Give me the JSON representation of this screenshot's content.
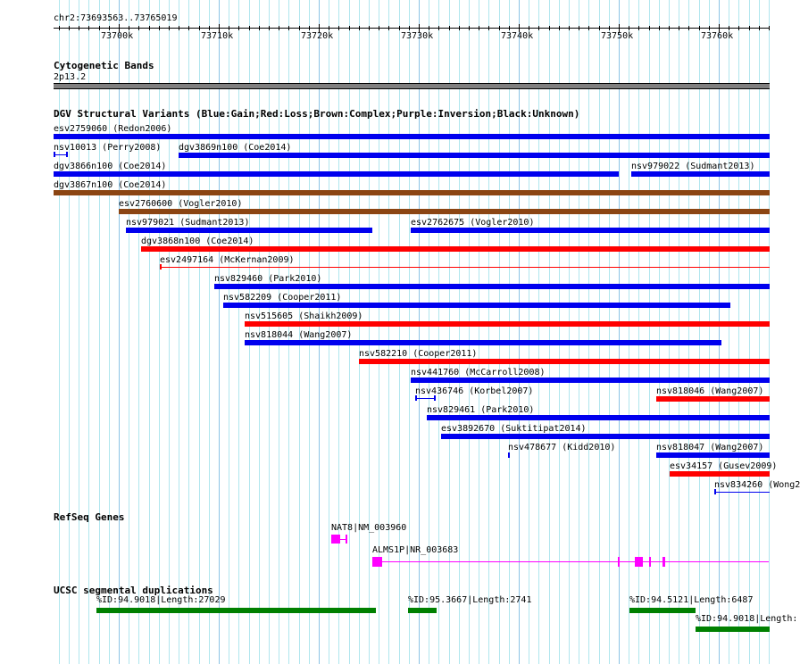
{
  "ruler": {
    "label": "chr2:73693563..73765019",
    "start_kb": 73693.563,
    "end_kb": 73765.019,
    "tick_labels": [
      {
        "kb": 73700,
        "text": "73700k"
      },
      {
        "kb": 73710,
        "text": "73710k"
      },
      {
        "kb": 73720,
        "text": "73720k"
      },
      {
        "kb": 73730,
        "text": "73730k"
      },
      {
        "kb": 73740,
        "text": "73740k"
      },
      {
        "kb": 73750,
        "text": "73750k"
      },
      {
        "kb": 73760,
        "text": "73760k"
      }
    ]
  },
  "cyto": {
    "title": "Cytogenetic Bands",
    "band": "2p13.2",
    "color": "#808080"
  },
  "dgv": {
    "title": "DGV Structural Variants (Blue:Gain;Red:Loss;Brown:Complex;Purple:Inversion;Black:Unknown)",
    "colors": {
      "gain": "#0000ee",
      "loss": "#ff0000",
      "complex": "#8b4513"
    },
    "rows": [
      [
        {
          "label": "esv2759060 (Redon2006)",
          "s": 73693.5,
          "e": 73765.1,
          "type": "gain"
        }
      ],
      [
        {
          "label": "nsv10013 (Perry2008)",
          "s": 73693.5,
          "e": 73694.8,
          "type": "gain",
          "thin": true
        },
        {
          "label": "dgv3869n100 (Coe2014)",
          "s": 73706.0,
          "e": 73765.1,
          "type": "gain"
        }
      ],
      [
        {
          "label": "dgv3866n100 (Coe2014)",
          "s": 73693.5,
          "e": 73750.0,
          "type": "gain"
        },
        {
          "label": "nsv979022 (Sudmant2013)",
          "s": 73751.25,
          "e": 73765.1,
          "type": "gain"
        }
      ],
      [
        {
          "label": "dgv3867n100 (Coe2014)",
          "s": 73693.5,
          "e": 73765.1,
          "type": "complex"
        }
      ],
      [
        {
          "label": "esv2760600 (Vogler2010)",
          "s": 73700.0,
          "e": 73765.1,
          "type": "complex"
        }
      ],
      [
        {
          "label": "nsv979021 (Sudmant2013)",
          "s": 73700.7,
          "e": 73725.4,
          "type": "gain"
        },
        {
          "label": "esv2762675 (Vogler2010)",
          "s": 73729.2,
          "e": 73765.1,
          "type": "gain"
        }
      ],
      [
        {
          "label": "dgv3868n100 (Coe2014)",
          "s": 73702.2,
          "e": 73765.1,
          "type": "loss"
        }
      ],
      [
        {
          "label": "esv2497164 (McKernan2009)",
          "s": 73704.1,
          "e": 73765.1,
          "type": "loss",
          "thin": true
        }
      ],
      [
        {
          "label": "nsv829460 (Park2010)",
          "s": 73709.55,
          "e": 73765.1,
          "type": "gain"
        }
      ],
      [
        {
          "label": "nsv582209 (Cooper2011)",
          "s": 73710.45,
          "e": 73761.2,
          "type": "gain"
        }
      ],
      [
        {
          "label": "nsv515605 (Shaikh2009)",
          "s": 73712.6,
          "e": 73765.1,
          "type": "loss"
        }
      ],
      [
        {
          "label": "nsv818044 (Wang2007)",
          "s": 73712.6,
          "e": 73760.3,
          "type": "gain"
        }
      ],
      [
        {
          "label": "nsv582210 (Cooper2011)",
          "s": 73724.0,
          "e": 73765.1,
          "type": "loss"
        }
      ],
      [
        {
          "label": "nsv441760 (McCarroll2008)",
          "s": 73729.2,
          "e": 73765.1,
          "type": "gain"
        }
      ],
      [
        {
          "label": "nsv436746 (Korbel2007)",
          "s": 73729.6,
          "e": 73731.6,
          "type": "gain",
          "thin": true
        },
        {
          "label": "nsv818046 (Wang2007)",
          "s": 73753.75,
          "e": 73765.1,
          "type": "loss"
        }
      ],
      [
        {
          "label": "nsv829461 (Park2010)",
          "s": 73730.8,
          "e": 73765.1,
          "type": "gain"
        }
      ],
      [
        {
          "label": "esv3892670 (Suktitipat2014)",
          "s": 73732.2,
          "e": 73765.1,
          "type": "gain"
        }
      ],
      [
        {
          "label": "nsv478677 (Kidd2010)",
          "s": 73738.9,
          "e": 73739.1,
          "type": "gain"
        },
        {
          "label": "nsv818047 (Wang2007)",
          "s": 73753.75,
          "e": 73765.1,
          "type": "gain"
        }
      ],
      [
        {
          "label": "esv34157 (Gusev2009)",
          "s": 73755.1,
          "e": 73765.1,
          "type": "loss"
        }
      ],
      [
        {
          "label": "nsv834260 (Wong2",
          "s": 73759.55,
          "e": 73765.1,
          "type": "gain",
          "thin": true
        }
      ]
    ]
  },
  "refseq": {
    "title": "RefSeq Genes",
    "color": "#ff00ff",
    "genes": [
      {
        "label": "NAT8|NM_003960",
        "s": 73721.25,
        "e": 73722.9,
        "exons": [
          [
            73721.25,
            73722.1
          ],
          [
            73722.7,
            73722.9
          ]
        ]
      },
      {
        "label": "ALMS1P|NR_003683",
        "s": 73725.4,
        "e": 73765.0,
        "exons": [
          [
            73725.4,
            73726.3
          ],
          [
            73749.9,
            73750.0
          ],
          [
            73751.6,
            73752.4
          ],
          [
            73753.0,
            73753.2
          ],
          [
            73754.4,
            73754.6
          ]
        ]
      }
    ]
  },
  "segdup": {
    "title": "UCSC segmental duplications",
    "color": "#008000",
    "items": [
      {
        "label": "%ID:94.9018|Length:27029",
        "s": 73697.8,
        "e": 73725.7,
        "row": 0
      },
      {
        "label": "%ID:95.3667|Length:2741",
        "s": 73728.9,
        "e": 73731.8,
        "row": 0
      },
      {
        "label": "%ID:94.5121|Length:6487",
        "s": 73751.1,
        "e": 73757.7,
        "row": 0
      },
      {
        "label": "%ID:94.9018|Length:",
        "s": 73757.7,
        "e": 73765.1,
        "row": 1
      }
    ]
  }
}
